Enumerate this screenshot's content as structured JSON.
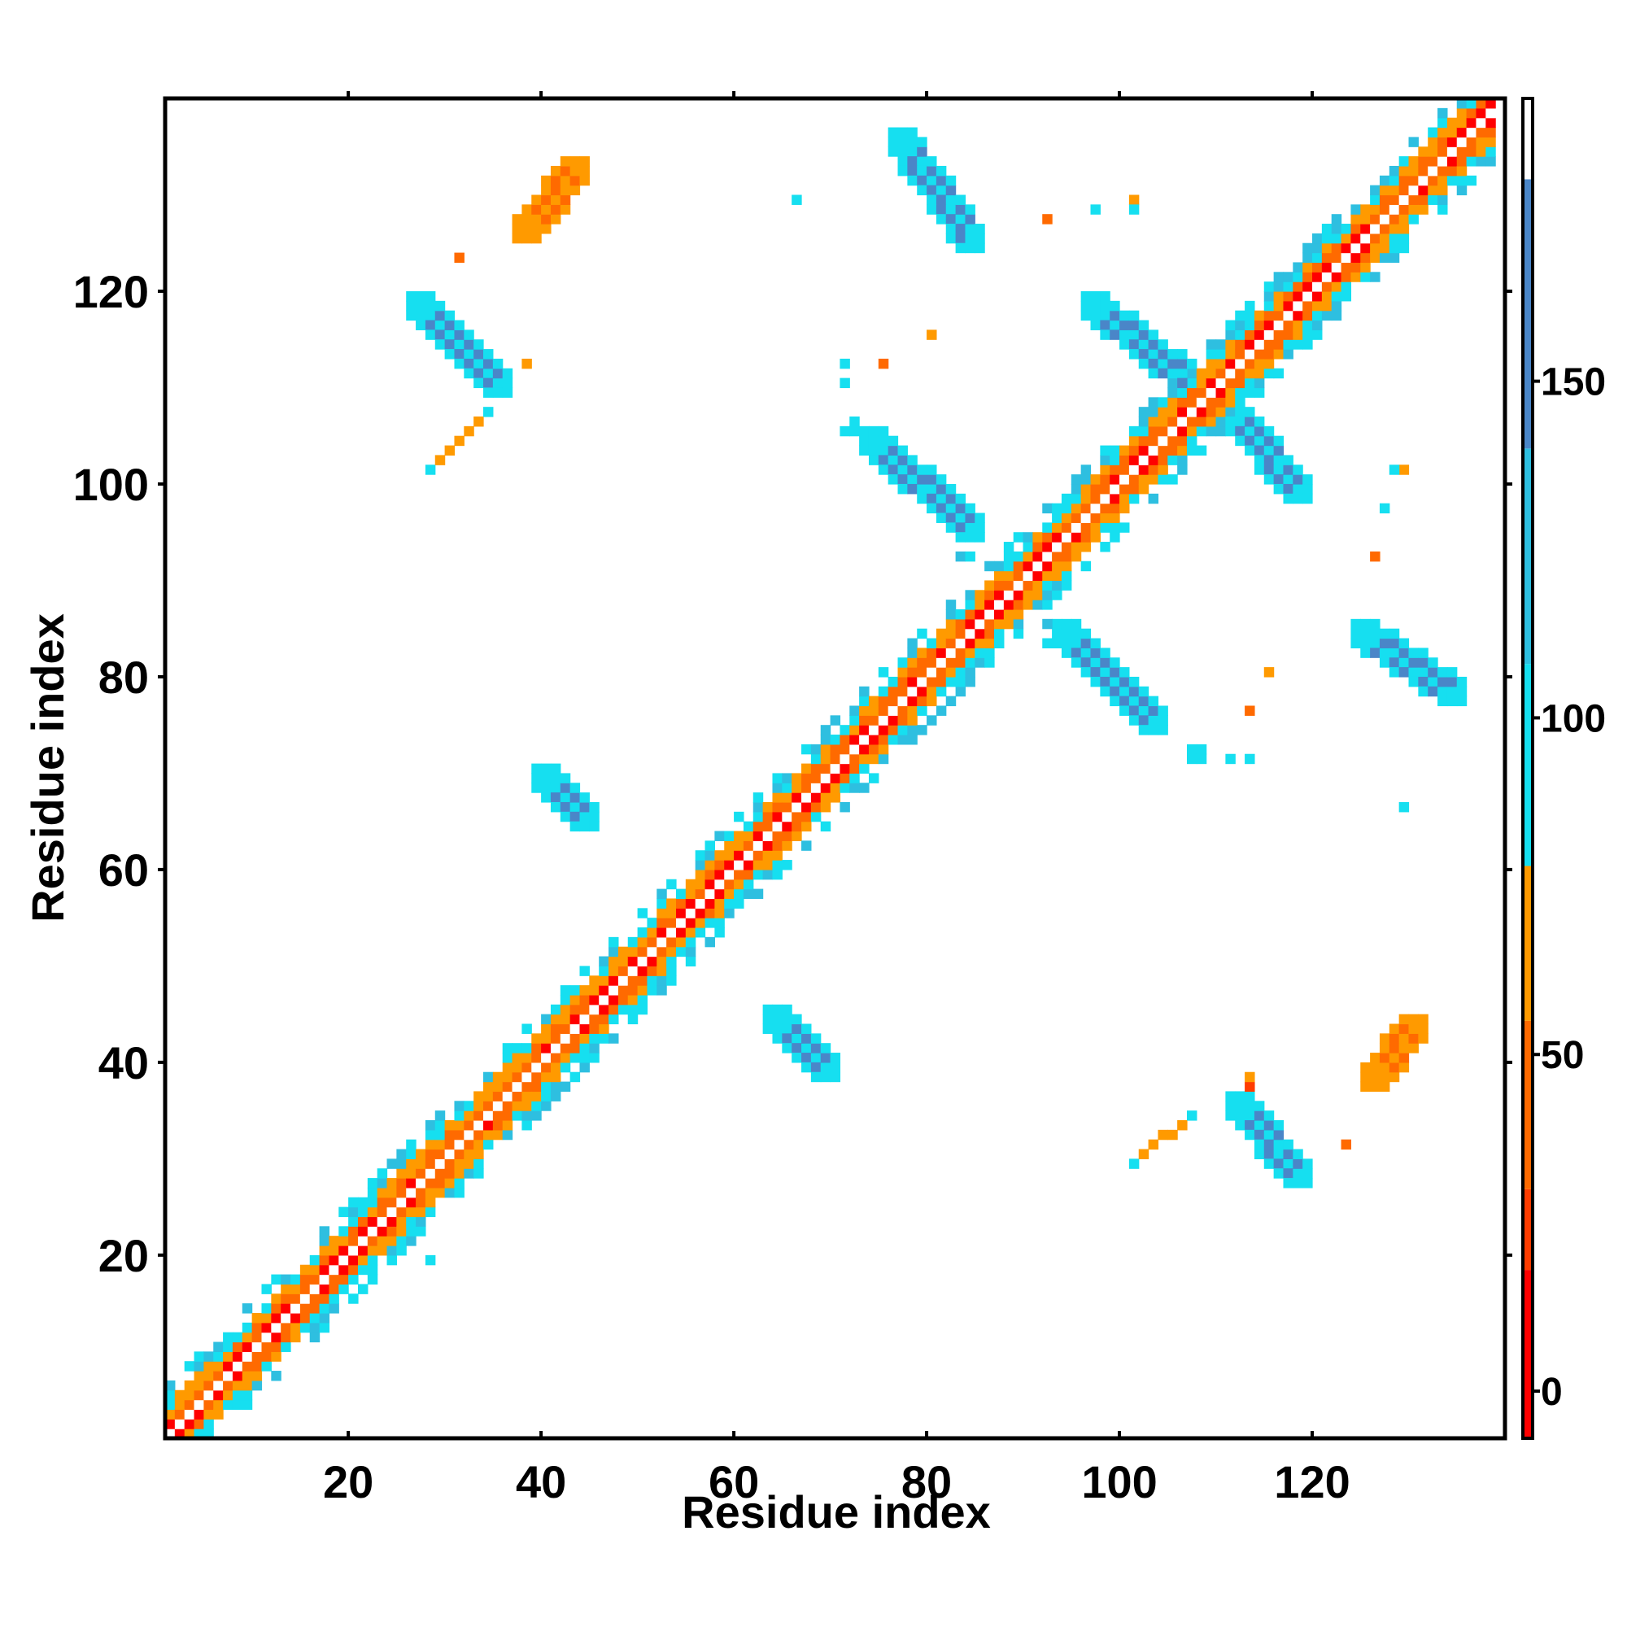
{
  "chart_data": {
    "type": "heatmap",
    "title": "",
    "xlabel": "Residue index",
    "ylabel": "Residue index",
    "xlim": [
      1,
      140
    ],
    "ylim": [
      1,
      140
    ],
    "x_ticks": [
      20,
      40,
      60,
      80,
      100,
      120
    ],
    "y_ticks": [
      20,
      40,
      60,
      80,
      100,
      120
    ],
    "colorbar": {
      "ticks": [
        0,
        50,
        100,
        150
      ],
      "range": [
        -7,
        192
      ],
      "bands": [
        {
          "from": -7,
          "to": 18,
          "color": "#ff0000"
        },
        {
          "from": 18,
          "to": 30,
          "color": "#ff3c00"
        },
        {
          "from": 30,
          "to": 55,
          "color": "#ff6a00"
        },
        {
          "from": 55,
          "to": 78,
          "color": "#ff9a00"
        },
        {
          "from": 78,
          "to": 108,
          "color": "#16dff0"
        },
        {
          "from": 108,
          "to": 140,
          "color": "#2ebfe0"
        },
        {
          "from": 140,
          "to": 180,
          "color": "#4a86c8"
        },
        {
          "from": 180,
          "to": 192,
          "color": "#ffffff"
        }
      ]
    },
    "diagonal_band": {
      "from": 1,
      "to": 139,
      "half_width": 5
    },
    "contact_segments": [
      {
        "x0": 38,
        "y0": 126,
        "x1": 43,
        "y1": 132,
        "value": 35,
        "width": 3
      },
      {
        "x0": 27,
        "y0": 118,
        "x1": 35,
        "y1": 110,
        "value": 150,
        "width": 3
      },
      {
        "x0": 28,
        "y0": 101,
        "x1": 34,
        "y1": 107,
        "value": 60,
        "width": 1
      },
      {
        "x0": 77,
        "y0": 135,
        "x1": 84,
        "y1": 125,
        "value": 150,
        "width": 3
      },
      {
        "x0": 97,
        "y0": 118,
        "x1": 107,
        "y1": 110,
        "value": 155,
        "width": 3
      },
      {
        "x0": 111,
        "y0": 107,
        "x1": 118,
        "y1": 99,
        "value": 150,
        "width": 3
      },
      {
        "x0": 74,
        "y0": 104,
        "x1": 84,
        "y1": 95,
        "value": 150,
        "width": 3
      },
      {
        "x0": 94,
        "y0": 84,
        "x1": 103,
        "y1": 75,
        "value": 150,
        "width": 3
      },
      {
        "x0": 125,
        "y0": 84,
        "x1": 134,
        "y1": 78,
        "value": 150,
        "width": 3
      },
      {
        "x0": 40,
        "y0": 69,
        "x1": 44,
        "y1": 65,
        "value": 150,
        "width": 3
      },
      {
        "x0": 64,
        "y0": 44,
        "x1": 69,
        "y1": 39,
        "value": 150,
        "width": 3
      },
      {
        "x0": 112,
        "y0": 35,
        "x1": 118,
        "y1": 28,
        "value": 150,
        "width": 3
      },
      {
        "x0": 126,
        "y0": 38,
        "x1": 130,
        "y1": 43,
        "value": 35,
        "width": 3
      },
      {
        "x0": 101,
        "y0": 29,
        "x1": 107,
        "y1": 34,
        "value": 60,
        "width": 1
      },
      {
        "x0": 21,
        "y0": 25,
        "x1": 25,
        "y1": 21,
        "value": 130,
        "width": 1
      }
    ],
    "contact_points": [
      {
        "x": 66,
        "y": 129,
        "value": 90
      },
      {
        "x": 92,
        "y": 127,
        "value": 40
      },
      {
        "x": 97,
        "y": 128,
        "value": 100
      },
      {
        "x": 101,
        "y": 129,
        "value": 60
      },
      {
        "x": 101,
        "y": 128,
        "value": 95
      },
      {
        "x": 31,
        "y": 123,
        "value": 40
      },
      {
        "x": 38,
        "y": 112,
        "value": 60
      },
      {
        "x": 35,
        "y": 110,
        "value": 20
      },
      {
        "x": 80,
        "y": 115,
        "value": 60
      },
      {
        "x": 71,
        "y": 112,
        "value": 90
      },
      {
        "x": 75,
        "y": 112,
        "value": 40
      },
      {
        "x": 71,
        "y": 110,
        "value": 90
      },
      {
        "x": 72,
        "y": 106,
        "value": 100
      },
      {
        "x": 71,
        "y": 105,
        "value": 100
      },
      {
        "x": 72,
        "y": 105,
        "value": 100
      },
      {
        "x": 129,
        "y": 101,
        "value": 60
      },
      {
        "x": 128,
        "y": 101,
        "value": 100
      },
      {
        "x": 127,
        "y": 97,
        "value": 90
      },
      {
        "x": 126,
        "y": 92,
        "value": 40
      },
      {
        "x": 83,
        "y": 92,
        "value": 120
      },
      {
        "x": 84,
        "y": 92,
        "value": 90
      },
      {
        "x": 92,
        "y": 85,
        "value": 120
      },
      {
        "x": 92,
        "y": 83,
        "value": 90
      },
      {
        "x": 115,
        "y": 80,
        "value": 60
      },
      {
        "x": 113,
        "y": 76,
        "value": 40
      },
      {
        "x": 107,
        "y": 72,
        "value": 95
      },
      {
        "x": 108,
        "y": 72,
        "value": 95
      },
      {
        "x": 107,
        "y": 71,
        "value": 95
      },
      {
        "x": 108,
        "y": 71,
        "value": 95
      },
      {
        "x": 111,
        "y": 71,
        "value": 90
      },
      {
        "x": 113,
        "y": 71,
        "value": 90
      },
      {
        "x": 129,
        "y": 66,
        "value": 90
      },
      {
        "x": 113,
        "y": 37,
        "value": 20
      },
      {
        "x": 113,
        "y": 38,
        "value": 60
      },
      {
        "x": 123,
        "y": 31,
        "value": 40
      },
      {
        "x": 28,
        "y": 28,
        "value": 90
      },
      {
        "x": 28,
        "y": 19,
        "value": 90
      }
    ]
  }
}
